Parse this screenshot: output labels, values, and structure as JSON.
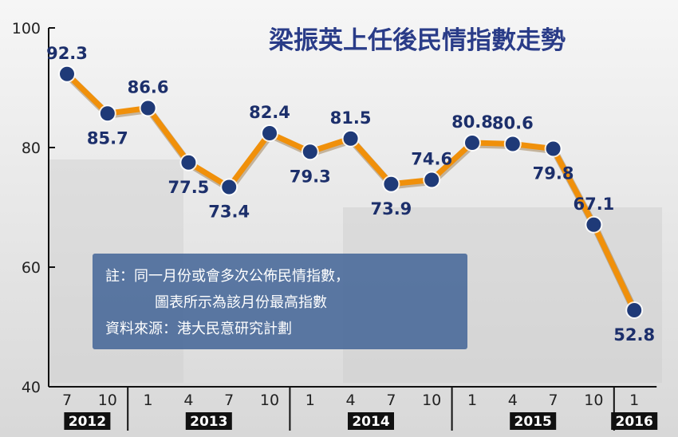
{
  "chart_data": {
    "type": "line",
    "title": "梁振英上任後民情指數走勢",
    "xlabel": "",
    "ylabel": "",
    "ylim": [
      40,
      100
    ],
    "yticks": [
      40,
      60,
      80,
      100
    ],
    "grid": false,
    "categories": [
      "2012-7",
      "2012-10",
      "2013-1",
      "2013-4",
      "2013-7",
      "2013-10",
      "2014-1",
      "2014-4",
      "2014-7",
      "2014-10",
      "2015-1",
      "2015-4",
      "2015-7",
      "2015-10",
      "2016-1"
    ],
    "tick_labels": [
      "7",
      "10",
      "1",
      "4",
      "7",
      "10",
      "1",
      "4",
      "7",
      "10",
      "1",
      "4",
      "7",
      "10",
      "1"
    ],
    "values": [
      92.3,
      85.7,
      86.6,
      77.5,
      73.4,
      82.4,
      79.3,
      81.5,
      73.9,
      74.6,
      80.8,
      80.6,
      79.8,
      67.1,
      52.8
    ],
    "years": [
      {
        "label": "2012",
        "from": 0,
        "to": 1
      },
      {
        "label": "2013",
        "from": 2,
        "to": 5
      },
      {
        "label": "2014",
        "from": 6,
        "to": 9
      },
      {
        "label": "2015",
        "from": 10,
        "to": 13
      },
      {
        "label": "2016",
        "from": 14,
        "to": 14
      }
    ],
    "note": {
      "line1": "註：同一月份或會多次公佈民情指數，",
      "line2": "圖表所示為該月份最高指數",
      "line3": "資料來源：港大民意研究計劃"
    },
    "colors": {
      "line": "#f0900a",
      "marker": "#1f3a78",
      "label": "#1c2f6b",
      "title": "#2a3c88",
      "note_box": "#4a6a9a"
    }
  }
}
